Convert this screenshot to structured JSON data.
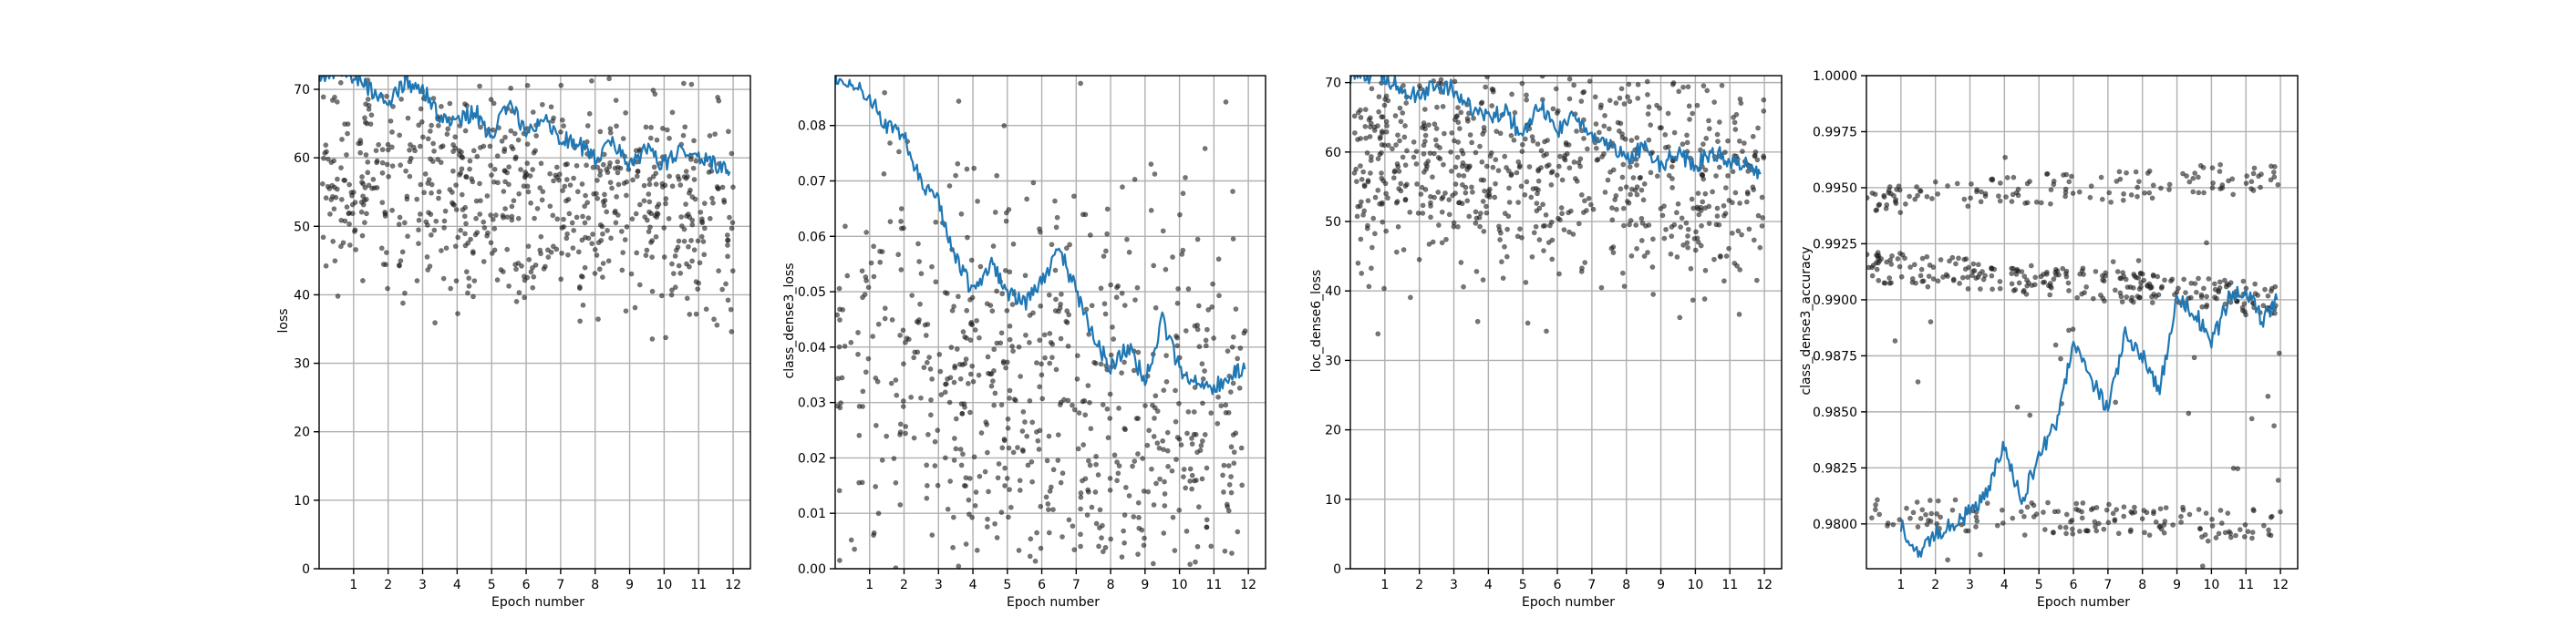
{
  "figure": {
    "subplots": [
      {
        "xlabel": "Epoch number",
        "ylabel": "loss"
      },
      {
        "xlabel": "Epoch number",
        "ylabel": "class_dense3_loss"
      },
      {
        "xlabel": "Epoch number",
        "ylabel": "loc_dense6_loss"
      },
      {
        "xlabel": "Epoch number",
        "ylabel": "class_dense3_accuracy"
      }
    ],
    "colors": {
      "line": "#1f77b4",
      "points": "#222222",
      "grid": "#b0b0b0"
    }
  },
  "chart_data": [
    {
      "type": "line",
      "title": "",
      "xlabel": "Epoch number",
      "ylabel": "loss",
      "xlim": [
        0,
        12.5
      ],
      "ylim": [
        0,
        72
      ],
      "xticks": [
        1,
        2,
        3,
        4,
        5,
        6,
        7,
        8,
        9,
        10,
        11,
        12
      ],
      "yticks": [
        0,
        10,
        20,
        30,
        40,
        50,
        60,
        70
      ],
      "ytick_labels": [
        "0",
        "10",
        "20",
        "30",
        "40",
        "50",
        "60",
        "70"
      ],
      "grid": true,
      "line_x": [
        0.0,
        0.5,
        1.0,
        1.5,
        2.0,
        2.5,
        3.0,
        3.5,
        4.0,
        4.5,
        5.0,
        5.5,
        6.0,
        6.5,
        7.0,
        7.5,
        8.0,
        8.5,
        9.0,
        9.5,
        10.0,
        10.5,
        11.0,
        11.5,
        11.9
      ],
      "line_y": [
        72,
        72,
        72,
        70,
        68,
        71,
        70,
        66,
        65,
        67,
        63,
        68,
        64,
        66,
        63,
        62,
        60,
        62,
        59,
        61,
        59,
        61,
        60,
        59,
        58
      ],
      "scatter": {
        "x_range": [
          0.1,
          12.0
        ],
        "y_range": [
          33,
          72
        ],
        "count": 700,
        "center": 58,
        "end_center": 52
      }
    },
    {
      "type": "line",
      "title": "",
      "xlabel": "Epoch number",
      "ylabel": "class_dense3_loss",
      "xlim": [
        0,
        12.5
      ],
      "ylim": [
        0,
        0.089
      ],
      "xticks": [
        1,
        2,
        3,
        4,
        5,
        6,
        7,
        8,
        9,
        10,
        11,
        12
      ],
      "yticks": [
        0.0,
        0.01,
        0.02,
        0.03,
        0.04,
        0.05,
        0.06,
        0.07,
        0.08
      ],
      "ytick_labels": [
        "0.00",
        "0.01",
        "0.02",
        "0.03",
        "0.04",
        "0.05",
        "0.06",
        "0.07",
        "0.08"
      ],
      "grid": true,
      "line_x": [
        0.0,
        0.5,
        1.0,
        1.5,
        2.0,
        2.5,
        3.0,
        3.5,
        4.0,
        4.5,
        5.0,
        5.5,
        6.0,
        6.5,
        7.0,
        7.5,
        8.0,
        8.5,
        9.0,
        9.5,
        10.0,
        10.5,
        11.0,
        11.5,
        11.9
      ],
      "line_y": [
        0.089,
        0.087,
        0.085,
        0.08,
        0.078,
        0.07,
        0.066,
        0.056,
        0.05,
        0.055,
        0.05,
        0.048,
        0.052,
        0.058,
        0.05,
        0.042,
        0.036,
        0.04,
        0.034,
        0.045,
        0.036,
        0.034,
        0.033,
        0.035,
        0.036
      ],
      "scatter": {
        "x_range": [
          0.0,
          12.0
        ],
        "y_range": [
          0.0,
          0.089
        ],
        "count": 650,
        "center": 0.04,
        "end_center": 0.02
      }
    },
    {
      "type": "line",
      "title": "",
      "xlabel": "Epoch number",
      "ylabel": "loc_dense6_loss",
      "xlim": [
        0,
        12.5
      ],
      "ylim": [
        0,
        71
      ],
      "xticks": [
        1,
        2,
        3,
        4,
        5,
        6,
        7,
        8,
        9,
        10,
        11,
        12
      ],
      "yticks": [
        0,
        10,
        20,
        30,
        40,
        50,
        60,
        70
      ],
      "ytick_labels": [
        "0",
        "10",
        "20",
        "30",
        "40",
        "50",
        "60",
        "70"
      ],
      "grid": true,
      "line_x": [
        0.0,
        0.5,
        1.0,
        1.5,
        2.0,
        2.5,
        3.0,
        3.5,
        4.0,
        4.5,
        5.0,
        5.5,
        6.0,
        6.5,
        7.0,
        7.5,
        8.0,
        8.5,
        9.0,
        9.5,
        10.0,
        10.5,
        11.0,
        11.5,
        11.9
      ],
      "line_y": [
        71,
        71,
        71,
        69,
        68,
        70,
        69,
        66,
        65,
        66,
        62,
        67,
        63,
        65,
        62,
        61,
        59,
        61,
        58,
        60,
        58,
        60,
        59,
        58,
        57
      ],
      "scatter": {
        "x_range": [
          0.1,
          12.0
        ],
        "y_range": [
          33,
          71
        ],
        "count": 700,
        "center": 60,
        "end_center": 54
      }
    },
    {
      "type": "line",
      "title": "",
      "xlabel": "Epoch number",
      "ylabel": "class_dense3_accuracy",
      "xlim": [
        0,
        12.5
      ],
      "ylim": [
        0.978,
        1.0
      ],
      "xticks": [
        1,
        2,
        3,
        4,
        5,
        6,
        7,
        8,
        9,
        10,
        11,
        12
      ],
      "yticks": [
        0.98,
        0.9825,
        0.985,
        0.9875,
        0.99,
        0.9925,
        0.995,
        0.9975,
        1.0
      ],
      "ytick_labels": [
        "0.9800",
        "0.9825",
        "0.9850",
        "0.9875",
        "0.9900",
        "0.9925",
        "0.9950",
        "0.9975",
        "1.0000"
      ],
      "grid": true,
      "line_x": [
        1.0,
        1.5,
        2.0,
        2.5,
        3.0,
        3.5,
        4.0,
        4.5,
        5.0,
        5.5,
        6.0,
        6.5,
        7.0,
        7.5,
        8.0,
        8.5,
        9.0,
        9.5,
        10.0,
        10.5,
        11.0,
        11.5,
        11.9
      ],
      "line_y": [
        0.98,
        0.9785,
        0.9795,
        0.98,
        0.9805,
        0.9815,
        0.9835,
        0.981,
        0.983,
        0.9845,
        0.988,
        0.9865,
        0.985,
        0.9885,
        0.9875,
        0.986,
        0.99,
        0.9895,
        0.988,
        0.99,
        0.9905,
        0.989,
        0.99
      ],
      "scatter": {
        "x_range": [
          0.0,
          12.0
        ],
        "y_range": [
          0.978,
          0.9965
        ],
        "count": 600,
        "center": 0.99,
        "end_center": 0.99
      }
    }
  ]
}
